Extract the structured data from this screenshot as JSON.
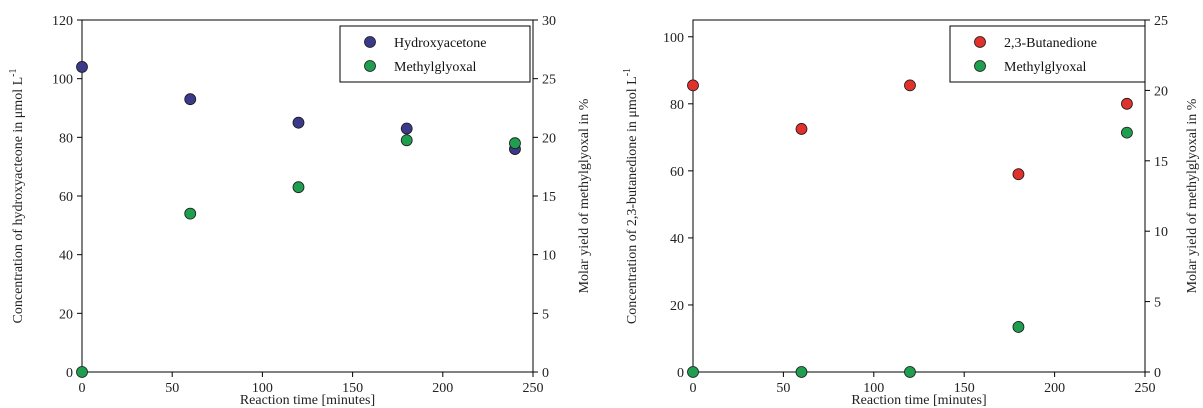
{
  "colors": {
    "hydroxyacetone": "#3b3a8a",
    "methylglyoxal": "#1e9e4e",
    "butanedione": "#e0312d"
  },
  "chart_data": [
    {
      "type": "scatter",
      "title": "",
      "xlabel": "Reaction time [minutes]",
      "ylabel": "Concentration of hydroxyacteone in μmol L",
      "ylabel_sup": "-1",
      "y2label": "Molar yield of methylglyoxal in %",
      "xlim": [
        0,
        250
      ],
      "ylim": [
        0,
        120
      ],
      "y2lim": [
        0,
        30
      ],
      "xticks": [
        "0",
        "50",
        "100",
        "150",
        "200",
        "250"
      ],
      "yticks": [
        "0",
        "20",
        "40",
        "60",
        "80",
        "100",
        "120"
      ],
      "y2ticks": [
        "0",
        "5",
        "10",
        "15",
        "20",
        "25",
        "30"
      ],
      "legend_position": "top-right",
      "grid": false,
      "series": [
        {
          "name": "Hydroxyacetone",
          "axis": "left",
          "color": "#3b3a8a",
          "x": [
            0,
            60,
            120,
            180,
            240
          ],
          "y": [
            104,
            93,
            85,
            83,
            76
          ]
        },
        {
          "name": "Methylglyoxal",
          "axis": "right",
          "color": "#1e9e4e",
          "x": [
            0,
            60,
            120,
            180,
            240
          ],
          "y": [
            0,
            13.5,
            15.75,
            19.75,
            19.5
          ]
        }
      ]
    },
    {
      "type": "scatter",
      "title": "",
      "xlabel": "Reaction time [minutes]",
      "ylabel": "Concentration of 2,3-butanedione in μmol L",
      "ylabel_sup": "-1",
      "y2label": "Molar yield of methylglyoxal in %",
      "xlim": [
        0,
        250
      ],
      "ylim": [
        0,
        105
      ],
      "y2lim": [
        0,
        25
      ],
      "xticks": [
        "0",
        "50",
        "100",
        "150",
        "200",
        "250"
      ],
      "yticks": [
        "0",
        "20",
        "40",
        "60",
        "80",
        "100"
      ],
      "y2ticks": [
        "0",
        "5",
        "10",
        "15",
        "20",
        "25"
      ],
      "legend_position": "top-right",
      "grid": false,
      "series": [
        {
          "name": "2,3-Butanedione",
          "axis": "left",
          "color": "#e0312d",
          "x": [
            0,
            60,
            120,
            180,
            240
          ],
          "y": [
            85.5,
            72.5,
            85.5,
            59,
            80
          ]
        },
        {
          "name": "Methylglyoxal",
          "axis": "right",
          "color": "#1e9e4e",
          "x": [
            0,
            60,
            120,
            180,
            240
          ],
          "y": [
            0,
            0,
            0,
            3.2,
            17
          ]
        }
      ]
    }
  ]
}
